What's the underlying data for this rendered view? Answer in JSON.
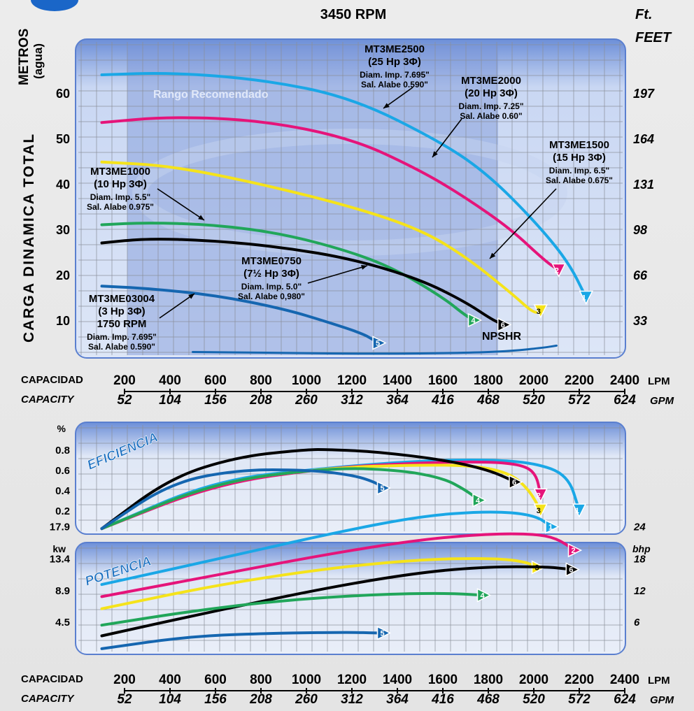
{
  "header": {
    "rpm": "3450 RPM",
    "right_unit_1": "Ft.",
    "right_unit_2": "FEET"
  },
  "colors": {
    "MT3ME2500": "#1aa7e6",
    "MT3ME2000": "#e5147a",
    "MT3ME1500": "#f5e31a",
    "MT3ME1000": "#21a65a",
    "MT3ME0750": "#000000",
    "MT3ME03004": "#1566b0",
    "title_blue": "#1a6fc0"
  },
  "chart_data": [
    {
      "type": "line",
      "title": "3450 RPM",
      "ylabel_left": "CARGA DINAMICA TOTAL",
      "ylabel_left_unit": "METROS",
      "ylabel_left_sub": "(agua)",
      "ylabel_right": "FEET",
      "ylabel_right_unit": "Ft.",
      "xlabel": "CAPACIDAD",
      "xlabel_en": "CAPACITY",
      "x_unit": "LPM",
      "x2_unit": "GPM",
      "xlim": [
        100,
        2400
      ],
      "ylim": [
        2,
        67
      ],
      "yticks": [
        10,
        20,
        30,
        40,
        50,
        60
      ],
      "yticks_right": [
        "33",
        "66",
        "98",
        "131",
        "164",
        "197"
      ],
      "xticks_lpm": [
        "200",
        "400",
        "600",
        "800",
        "1000",
        "1200",
        "1400",
        "1600",
        "1800",
        "2000",
        "2200",
        "2400"
      ],
      "xticks_gpm": [
        "52",
        "104",
        "156",
        "208",
        "260",
        "312",
        "364",
        "416",
        "468",
        "520",
        "572",
        "624"
      ],
      "region_label": "Rango Recomendado",
      "grid": true,
      "series": [
        {
          "name": "MT3ME2500",
          "marker": "1",
          "spec": [
            "(25 Hp 3Φ)",
            "Diam. Imp. 7.695\"",
            "Sal. Alabe 0.590\""
          ],
          "x": [
            100,
            400,
            800,
            1200,
            1600,
            1800,
            2000,
            2150,
            2230
          ],
          "y": [
            64,
            64.5,
            63,
            59,
            49,
            42,
            32,
            23,
            15
          ]
        },
        {
          "name": "MT3ME2000",
          "marker": "2",
          "spec": [
            "(20 Hp 3Φ)",
            "Diam. Imp. 7.25\"",
            "Sal. Alabe 0.60\""
          ],
          "x": [
            100,
            400,
            800,
            1200,
            1500,
            1700,
            1900,
            2050,
            2110
          ],
          "y": [
            53.5,
            54.8,
            54,
            50,
            43,
            37,
            30,
            23,
            21
          ]
        },
        {
          "name": "MT3ME1500",
          "marker": "3",
          "spec": [
            "(15 Hp 3Φ)",
            "Diam. Imp. 6.5\"",
            "Sal. Alabe 0.675\""
          ],
          "x": [
            100,
            400,
            800,
            1200,
            1500,
            1700,
            1900,
            2000,
            2030
          ],
          "y": [
            44.8,
            44,
            40,
            35,
            30,
            24,
            16,
            11.5,
            12
          ]
        },
        {
          "name": "MT3ME1000",
          "marker": "4",
          "spec": [
            "(10 Hp 3Φ)",
            "Diam. Imp. 5.5\"",
            "Sal. Alabe 0.975\""
          ],
          "x": [
            100,
            300,
            600,
            900,
            1200,
            1400,
            1600,
            1700,
            1740
          ],
          "y": [
            31,
            31.5,
            31,
            29,
            25,
            21,
            15,
            11,
            10
          ]
        },
        {
          "name": "MT3ME0750",
          "marker": "6",
          "spec": [
            "(7½ Hp 3Φ)",
            "Diam. Imp. 5.0\"",
            "Sal. Alabe 0,980\""
          ],
          "x": [
            100,
            300,
            600,
            900,
            1200,
            1500,
            1700,
            1820,
            1870
          ],
          "y": [
            27,
            28,
            27.5,
            26,
            23.5,
            19,
            14,
            10,
            9
          ]
        },
        {
          "name": "MT3ME03004",
          "marker": "5",
          "spec": [
            "(3 Hp 3Φ)",
            "1750 RPM",
            "Diam. Imp. 7.695\"",
            "Sal. Alabe 0.590\""
          ],
          "x": [
            100,
            300,
            600,
            900,
            1100,
            1250,
            1300,
            1320
          ],
          "y": [
            17.5,
            17,
            15.5,
            12.5,
            9.5,
            7,
            5.5,
            5
          ]
        },
        {
          "name": "NPSHR",
          "marker": "",
          "spec": [],
          "x": [
            500,
            900,
            1300,
            1700,
            1900,
            2050,
            2100
          ],
          "y": [
            3,
            2.8,
            2.6,
            2.8,
            3.2,
            4.0,
            4.4
          ]
        }
      ]
    },
    {
      "type": "line",
      "title": "EFICIENCIA",
      "ylabel": "%",
      "xlim": [
        100,
        2400
      ],
      "ylim": [
        0,
        0.95
      ],
      "yticks": [
        "0.2",
        "0.4",
        "0.6",
        "0.8"
      ],
      "grid": true,
      "series": [
        {
          "name": "MT3ME2500",
          "marker": "1",
          "x": [
            100,
            600,
            1100,
            1500,
            1800,
            2000,
            2150,
            2200
          ],
          "y": [
            0.02,
            0.5,
            0.62,
            0.69,
            0.7,
            0.67,
            0.55,
            0.2
          ]
        },
        {
          "name": "MT3ME2000",
          "marker": "2",
          "x": [
            100,
            600,
            1100,
            1500,
            1800,
            1950,
            2010,
            2030
          ],
          "y": [
            0.02,
            0.46,
            0.62,
            0.67,
            0.68,
            0.65,
            0.56,
            0.35
          ]
        },
        {
          "name": "MT3ME1500",
          "marker": "3",
          "x": [
            100,
            600,
            1100,
            1500,
            1750,
            1900,
            1980,
            2030
          ],
          "y": [
            0.02,
            0.48,
            0.62,
            0.65,
            0.64,
            0.56,
            0.4,
            0.2
          ]
        },
        {
          "name": "MT3ME1000",
          "marker": "4",
          "x": [
            100,
            600,
            1100,
            1400,
            1600,
            1700,
            1760
          ],
          "y": [
            0.02,
            0.48,
            0.62,
            0.6,
            0.52,
            0.4,
            0.3
          ]
        },
        {
          "name": "MT3ME0750",
          "marker": "6",
          "x": [
            100,
            400,
            700,
            1000,
            1100,
            1300,
            1600,
            1800,
            1920
          ],
          "y": [
            0.02,
            0.52,
            0.73,
            0.8,
            0.8,
            0.78,
            0.7,
            0.6,
            0.48
          ]
        },
        {
          "name": "MT3ME03004",
          "marker": "5",
          "x": [
            100,
            400,
            700,
            1000,
            1200,
            1300,
            1340
          ],
          "y": [
            0.02,
            0.47,
            0.6,
            0.6,
            0.55,
            0.48,
            0.42
          ]
        }
      ]
    },
    {
      "type": "line",
      "title": "POTENCIA",
      "ylabel": "kw",
      "ylabel_right": "bhp",
      "xlim": [
        100,
        2400
      ],
      "ylim": [
        0,
        22
      ],
      "yticks": [
        "4.5",
        "8.9",
        "13.4",
        "17.9"
      ],
      "yticks_right": [
        "6",
        "12",
        "18",
        "24"
      ],
      "grid": true,
      "series": [
        {
          "name": "MT3ME2500",
          "marker": "1",
          "x": [
            100,
            600,
            1100,
            1500,
            1800,
            2000,
            2080
          ],
          "y": [
            9.7,
            13.2,
            16.8,
            19.3,
            20.0,
            19.5,
            17.8
          ]
        },
        {
          "name": "MT3ME2000",
          "marker": "2",
          "x": [
            100,
            600,
            1100,
            1500,
            1800,
            2000,
            2100,
            2180
          ],
          "y": [
            8.0,
            11.0,
            14.0,
            16.0,
            16.8,
            16.8,
            16.2,
            14.5
          ]
        },
        {
          "name": "MT3ME1500",
          "marker": "3",
          "x": [
            100,
            600,
            1100,
            1500,
            1800,
            1950,
            2020
          ],
          "y": [
            6.3,
            9.6,
            12.0,
            13.2,
            13.4,
            13.0,
            12.1
          ]
        },
        {
          "name": "MT3ME0750",
          "marker": "6",
          "x": [
            100,
            600,
            1100,
            1500,
            1800,
            2050,
            2170
          ],
          "y": [
            2.5,
            6.0,
            9.3,
            11.4,
            12.2,
            12.2,
            11.8
          ]
        },
        {
          "name": "MT3ME1000",
          "marker": "4",
          "x": [
            100,
            500,
            900,
            1300,
            1600,
            1780
          ],
          "y": [
            4.0,
            6.0,
            7.5,
            8.3,
            8.5,
            8.2
          ]
        },
        {
          "name": "MT3ME03004",
          "marker": "5",
          "x": [
            100,
            500,
            900,
            1200,
            1300,
            1340
          ],
          "y": [
            0.7,
            2.5,
            2.9,
            3.0,
            2.9,
            2.9
          ]
        }
      ]
    }
  ]
}
